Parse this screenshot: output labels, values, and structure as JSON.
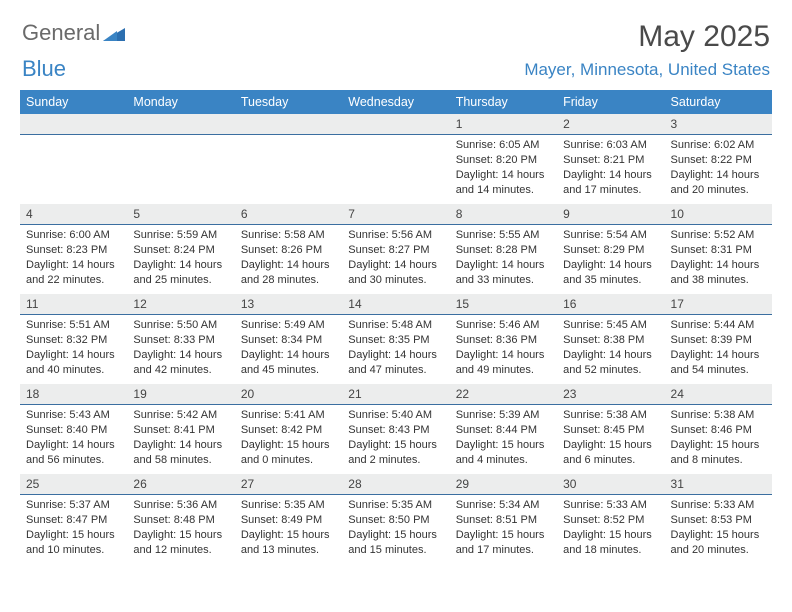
{
  "brand": {
    "part1": "General",
    "part2": "Blue"
  },
  "title": "May 2025",
  "location": "Mayer, Minnesota, United States",
  "colors": {
    "header_bg": "#3a84c4",
    "header_text": "#ffffff",
    "daynum_bg": "#eceded",
    "daynum_border": "#3a6ea0",
    "brand_gray": "#6a6a6a",
    "brand_blue": "#3a84c4",
    "title_color": "#4a4a4a",
    "body_text": "#333333",
    "page_bg": "#ffffff"
  },
  "weekdays": [
    "Sunday",
    "Monday",
    "Tuesday",
    "Wednesday",
    "Thursday",
    "Friday",
    "Saturday"
  ],
  "weeks": [
    [
      null,
      null,
      null,
      null,
      {
        "n": "1",
        "sr": "Sunrise: 6:05 AM",
        "ss": "Sunset: 8:20 PM",
        "d1": "Daylight: 14 hours",
        "d2": "and 14 minutes."
      },
      {
        "n": "2",
        "sr": "Sunrise: 6:03 AM",
        "ss": "Sunset: 8:21 PM",
        "d1": "Daylight: 14 hours",
        "d2": "and 17 minutes."
      },
      {
        "n": "3",
        "sr": "Sunrise: 6:02 AM",
        "ss": "Sunset: 8:22 PM",
        "d1": "Daylight: 14 hours",
        "d2": "and 20 minutes."
      }
    ],
    [
      {
        "n": "4",
        "sr": "Sunrise: 6:00 AM",
        "ss": "Sunset: 8:23 PM",
        "d1": "Daylight: 14 hours",
        "d2": "and 22 minutes."
      },
      {
        "n": "5",
        "sr": "Sunrise: 5:59 AM",
        "ss": "Sunset: 8:24 PM",
        "d1": "Daylight: 14 hours",
        "d2": "and 25 minutes."
      },
      {
        "n": "6",
        "sr": "Sunrise: 5:58 AM",
        "ss": "Sunset: 8:26 PM",
        "d1": "Daylight: 14 hours",
        "d2": "and 28 minutes."
      },
      {
        "n": "7",
        "sr": "Sunrise: 5:56 AM",
        "ss": "Sunset: 8:27 PM",
        "d1": "Daylight: 14 hours",
        "d2": "and 30 minutes."
      },
      {
        "n": "8",
        "sr": "Sunrise: 5:55 AM",
        "ss": "Sunset: 8:28 PM",
        "d1": "Daylight: 14 hours",
        "d2": "and 33 minutes."
      },
      {
        "n": "9",
        "sr": "Sunrise: 5:54 AM",
        "ss": "Sunset: 8:29 PM",
        "d1": "Daylight: 14 hours",
        "d2": "and 35 minutes."
      },
      {
        "n": "10",
        "sr": "Sunrise: 5:52 AM",
        "ss": "Sunset: 8:31 PM",
        "d1": "Daylight: 14 hours",
        "d2": "and 38 minutes."
      }
    ],
    [
      {
        "n": "11",
        "sr": "Sunrise: 5:51 AM",
        "ss": "Sunset: 8:32 PM",
        "d1": "Daylight: 14 hours",
        "d2": "and 40 minutes."
      },
      {
        "n": "12",
        "sr": "Sunrise: 5:50 AM",
        "ss": "Sunset: 8:33 PM",
        "d1": "Daylight: 14 hours",
        "d2": "and 42 minutes."
      },
      {
        "n": "13",
        "sr": "Sunrise: 5:49 AM",
        "ss": "Sunset: 8:34 PM",
        "d1": "Daylight: 14 hours",
        "d2": "and 45 minutes."
      },
      {
        "n": "14",
        "sr": "Sunrise: 5:48 AM",
        "ss": "Sunset: 8:35 PM",
        "d1": "Daylight: 14 hours",
        "d2": "and 47 minutes."
      },
      {
        "n": "15",
        "sr": "Sunrise: 5:46 AM",
        "ss": "Sunset: 8:36 PM",
        "d1": "Daylight: 14 hours",
        "d2": "and 49 minutes."
      },
      {
        "n": "16",
        "sr": "Sunrise: 5:45 AM",
        "ss": "Sunset: 8:38 PM",
        "d1": "Daylight: 14 hours",
        "d2": "and 52 minutes."
      },
      {
        "n": "17",
        "sr": "Sunrise: 5:44 AM",
        "ss": "Sunset: 8:39 PM",
        "d1": "Daylight: 14 hours",
        "d2": "and 54 minutes."
      }
    ],
    [
      {
        "n": "18",
        "sr": "Sunrise: 5:43 AM",
        "ss": "Sunset: 8:40 PM",
        "d1": "Daylight: 14 hours",
        "d2": "and 56 minutes."
      },
      {
        "n": "19",
        "sr": "Sunrise: 5:42 AM",
        "ss": "Sunset: 8:41 PM",
        "d1": "Daylight: 14 hours",
        "d2": "and 58 minutes."
      },
      {
        "n": "20",
        "sr": "Sunrise: 5:41 AM",
        "ss": "Sunset: 8:42 PM",
        "d1": "Daylight: 15 hours",
        "d2": "and 0 minutes."
      },
      {
        "n": "21",
        "sr": "Sunrise: 5:40 AM",
        "ss": "Sunset: 8:43 PM",
        "d1": "Daylight: 15 hours",
        "d2": "and 2 minutes."
      },
      {
        "n": "22",
        "sr": "Sunrise: 5:39 AM",
        "ss": "Sunset: 8:44 PM",
        "d1": "Daylight: 15 hours",
        "d2": "and 4 minutes."
      },
      {
        "n": "23",
        "sr": "Sunrise: 5:38 AM",
        "ss": "Sunset: 8:45 PM",
        "d1": "Daylight: 15 hours",
        "d2": "and 6 minutes."
      },
      {
        "n": "24",
        "sr": "Sunrise: 5:38 AM",
        "ss": "Sunset: 8:46 PM",
        "d1": "Daylight: 15 hours",
        "d2": "and 8 minutes."
      }
    ],
    [
      {
        "n": "25",
        "sr": "Sunrise: 5:37 AM",
        "ss": "Sunset: 8:47 PM",
        "d1": "Daylight: 15 hours",
        "d2": "and 10 minutes."
      },
      {
        "n": "26",
        "sr": "Sunrise: 5:36 AM",
        "ss": "Sunset: 8:48 PM",
        "d1": "Daylight: 15 hours",
        "d2": "and 12 minutes."
      },
      {
        "n": "27",
        "sr": "Sunrise: 5:35 AM",
        "ss": "Sunset: 8:49 PM",
        "d1": "Daylight: 15 hours",
        "d2": "and 13 minutes."
      },
      {
        "n": "28",
        "sr": "Sunrise: 5:35 AM",
        "ss": "Sunset: 8:50 PM",
        "d1": "Daylight: 15 hours",
        "d2": "and 15 minutes."
      },
      {
        "n": "29",
        "sr": "Sunrise: 5:34 AM",
        "ss": "Sunset: 8:51 PM",
        "d1": "Daylight: 15 hours",
        "d2": "and 17 minutes."
      },
      {
        "n": "30",
        "sr": "Sunrise: 5:33 AM",
        "ss": "Sunset: 8:52 PM",
        "d1": "Daylight: 15 hours",
        "d2": "and 18 minutes."
      },
      {
        "n": "31",
        "sr": "Sunrise: 5:33 AM",
        "ss": "Sunset: 8:53 PM",
        "d1": "Daylight: 15 hours",
        "d2": "and 20 minutes."
      }
    ]
  ]
}
